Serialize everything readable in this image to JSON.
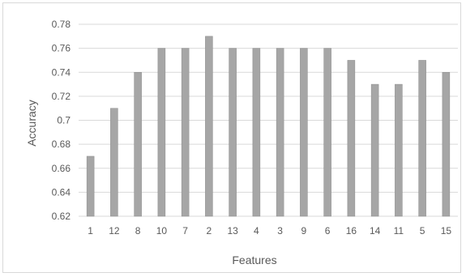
{
  "chart_data": {
    "type": "bar",
    "categories": [
      "1",
      "12",
      "8",
      "10",
      "7",
      "2",
      "13",
      "4",
      "3",
      "9",
      "6",
      "16",
      "14",
      "11",
      "5",
      "15"
    ],
    "values": [
      0.67,
      0.71,
      0.74,
      0.76,
      0.76,
      0.77,
      0.76,
      0.76,
      0.76,
      0.76,
      0.76,
      0.75,
      0.73,
      0.73,
      0.75,
      0.74
    ],
    "title": "",
    "xlabel": "Features",
    "ylabel": "Accuracy",
    "ylim": [
      0.62,
      0.78
    ],
    "yticks": [
      "0.62",
      "0.64",
      "0.66",
      "0.68",
      "0.7",
      "0.72",
      "0.74",
      "0.76",
      "0.78"
    ],
    "grid": true,
    "legend": "none",
    "colors": {
      "bar": "#a6a6a6",
      "bar_edge": "#8c8c8c",
      "grid": "#d9d9d9",
      "text": "#595959"
    }
  }
}
